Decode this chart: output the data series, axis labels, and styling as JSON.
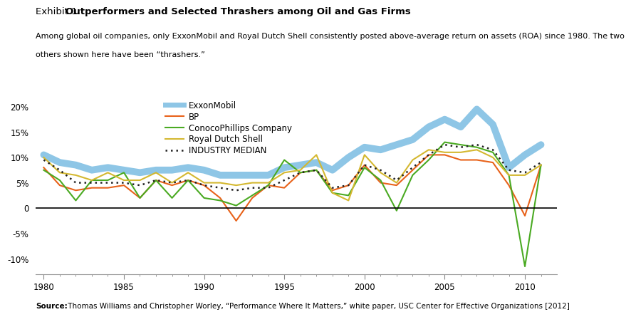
{
  "years": [
    1980,
    1981,
    1982,
    1983,
    1984,
    1985,
    1986,
    1987,
    1988,
    1989,
    1990,
    1991,
    1992,
    1993,
    1994,
    1995,
    1996,
    1997,
    1998,
    1999,
    2000,
    2001,
    2002,
    2003,
    2004,
    2005,
    2006,
    2007,
    2008,
    2009,
    2010,
    2011
  ],
  "exxon": [
    10.5,
    9.0,
    8.5,
    7.5,
    8.0,
    7.5,
    7.0,
    7.5,
    7.5,
    8.0,
    7.5,
    6.5,
    6.5,
    6.5,
    6.5,
    8.0,
    8.5,
    9.0,
    7.5,
    10.0,
    12.0,
    11.5,
    12.5,
    13.5,
    16.0,
    17.5,
    16.0,
    19.5,
    16.5,
    8.0,
    10.5,
    12.5
  ],
  "bp": [
    8.0,
    4.5,
    3.5,
    4.0,
    4.0,
    4.5,
    2.0,
    5.5,
    4.5,
    5.5,
    4.5,
    2.0,
    -2.5,
    2.0,
    4.5,
    4.0,
    7.0,
    7.5,
    3.5,
    4.5,
    8.5,
    5.0,
    4.5,
    7.5,
    10.5,
    10.5,
    9.5,
    9.5,
    9.0,
    4.5,
    -1.5,
    8.5
  ],
  "conoco": [
    7.5,
    5.5,
    1.5,
    5.5,
    5.5,
    7.0,
    2.0,
    5.5,
    2.0,
    5.5,
    2.0,
    1.5,
    0.5,
    2.5,
    4.5,
    9.5,
    7.0,
    7.5,
    3.0,
    2.5,
    8.0,
    5.5,
    -0.5,
    6.5,
    9.5,
    13.0,
    12.5,
    12.0,
    11.0,
    6.5,
    -11.5,
    8.5
  ],
  "shell": [
    10.0,
    7.0,
    6.5,
    5.5,
    7.0,
    5.5,
    5.5,
    7.0,
    5.0,
    7.0,
    5.0,
    5.0,
    4.5,
    5.0,
    5.0,
    7.0,
    7.5,
    10.5,
    3.0,
    1.5,
    10.5,
    7.0,
    5.0,
    9.5,
    11.5,
    11.0,
    11.0,
    11.5,
    10.0,
    6.5,
    6.5,
    8.5
  ],
  "median": [
    9.5,
    7.5,
    5.0,
    5.0,
    5.0,
    5.0,
    4.5,
    5.5,
    5.0,
    5.5,
    4.5,
    4.0,
    3.5,
    4.0,
    4.0,
    5.5,
    7.0,
    7.5,
    4.0,
    4.5,
    8.5,
    7.5,
    5.5,
    8.0,
    10.5,
    12.5,
    12.0,
    12.5,
    11.5,
    7.5,
    7.0,
    9.0
  ],
  "title_prefix": "Exhibit 1: ",
  "title_bold": "Outperformers and Selected Thrashers among Oil and Gas Firms",
  "subtitle_line1": "Among global oil companies, only ExxonMobil and Royal Dutch Shell consistently posted above-average return on assets (ROA) since 1980. The two",
  "subtitle_line2": "others shown here have been “thrashers.”",
  "source_bold": "Source:",
  "source_rest": " Thomas Williams and Christopher Worley, “Performance Where It Matters,” white paper, USC Center for Effective Organizations [2012]",
  "exxon_color": "#8ec6e6",
  "bp_color": "#e8621a",
  "conoco_color": "#4aaa22",
  "shell_color": "#d4b830",
  "median_color": "#222222",
  "ylim": [
    -13,
    22
  ],
  "yticks": [
    -10,
    -5,
    0,
    5,
    10,
    15,
    20
  ],
  "xlim": [
    1979.5,
    2012
  ],
  "xticks": [
    1980,
    1985,
    1990,
    1995,
    2000,
    2005,
    2010
  ],
  "legend_labels": [
    "ExxonMobil",
    "BP",
    "ConocoPhillips Company",
    "Royal Dutch Shell",
    "INDUSTRY MEDIAN"
  ],
  "background_color": "#ffffff"
}
